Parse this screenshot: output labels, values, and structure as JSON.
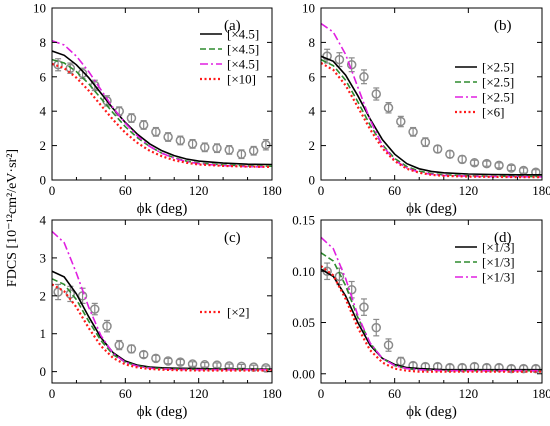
{
  "figure": {
    "ylabel_shared": "FDCS  [10⁻¹²cm²/eV·sr²]",
    "xlabel": "ϕk (deg)"
  },
  "colors": {
    "black": "#000000",
    "green": "#2e8b2e",
    "magenta": "#e020e0",
    "red": "#ff1a1a",
    "data_gray": "#8a8a8a"
  },
  "chart_data": [
    {
      "panel": "(a)",
      "type": "line",
      "xlim": [
        0,
        180
      ],
      "ylim": [
        0,
        10
      ],
      "xticks": [
        0,
        60,
        120,
        180
      ],
      "yticks": [
        0,
        2,
        4,
        6,
        8,
        10
      ],
      "xlabel": "ϕk (deg)",
      "ylabel": "",
      "legend_position": "upper-right",
      "series": [
        {
          "label": "[×4.5]",
          "color": "#000000",
          "style": "solid",
          "x": [
            0,
            10,
            20,
            30,
            40,
            50,
            60,
            70,
            80,
            90,
            100,
            110,
            120,
            140,
            160,
            180
          ],
          "y": [
            7.5,
            7.25,
            6.7,
            5.95,
            5.05,
            4.15,
            3.35,
            2.65,
            2.1,
            1.7,
            1.42,
            1.22,
            1.1,
            0.98,
            0.92,
            0.9
          ]
        },
        {
          "label": "[×4.5]",
          "color": "#2e8b2e",
          "style": "dashed",
          "x": [
            0,
            10,
            20,
            30,
            40,
            50,
            60,
            70,
            80,
            90,
            100,
            110,
            120,
            140,
            160,
            180
          ],
          "y": [
            7.0,
            6.8,
            6.3,
            5.6,
            4.75,
            3.9,
            3.1,
            2.45,
            1.95,
            1.55,
            1.3,
            1.1,
            0.98,
            0.88,
            0.82,
            0.8
          ]
        },
        {
          "label": "[×4.5]",
          "color": "#e020e0",
          "style": "dashdot",
          "x": [
            0,
            10,
            20,
            30,
            40,
            50,
            60,
            70,
            80,
            90,
            100,
            110,
            120,
            140,
            160,
            180
          ],
          "y": [
            8.1,
            7.85,
            7.2,
            6.3,
            5.25,
            4.2,
            3.3,
            2.55,
            1.95,
            1.55,
            1.27,
            1.07,
            0.95,
            0.84,
            0.78,
            0.75
          ]
        },
        {
          "label": "[×10]",
          "color": "#ff1a1a",
          "style": "dotted",
          "x": [
            0,
            10,
            20,
            30,
            40,
            50,
            60,
            70,
            80,
            90,
            100,
            110,
            120,
            140,
            160,
            180
          ],
          "y": [
            6.75,
            6.5,
            5.95,
            5.2,
            4.35,
            3.5,
            2.75,
            2.15,
            1.7,
            1.38,
            1.15,
            1.0,
            0.9,
            0.82,
            0.78,
            0.76
          ]
        }
      ],
      "experiment": {
        "x": [
          5,
          15,
          25,
          35,
          45,
          55,
          65,
          75,
          85,
          95,
          105,
          115,
          125,
          135,
          145,
          155,
          165,
          175
        ],
        "y": [
          6.7,
          6.5,
          6.2,
          5.5,
          4.6,
          4.0,
          3.6,
          3.2,
          2.8,
          2.5,
          2.3,
          2.1,
          1.9,
          1.85,
          1.75,
          1.5,
          1.7,
          2.05
        ],
        "err": [
          0.35,
          0.3,
          0.3,
          0.3,
          0.3,
          0.25,
          0.25,
          0.25,
          0.25,
          0.25,
          0.25,
          0.25,
          0.25,
          0.25,
          0.25,
          0.25,
          0.25,
          0.3
        ]
      }
    },
    {
      "panel": "(b)",
      "type": "line",
      "xlim": [
        0,
        180
      ],
      "ylim": [
        0,
        10
      ],
      "xticks": [
        0,
        60,
        120,
        180
      ],
      "yticks": [
        0,
        2,
        4,
        6,
        8,
        10
      ],
      "xlabel": "ϕk (deg)",
      "ylabel": "",
      "legend_position": "center-right",
      "series": [
        {
          "label": "[×2.5]",
          "color": "#000000",
          "style": "solid",
          "x": [
            0,
            10,
            20,
            30,
            40,
            50,
            60,
            70,
            80,
            90,
            100,
            120,
            140,
            160,
            180
          ],
          "y": [
            7.2,
            6.9,
            6.1,
            4.9,
            3.55,
            2.35,
            1.5,
            0.95,
            0.65,
            0.5,
            0.42,
            0.35,
            0.32,
            0.3,
            0.3
          ]
        },
        {
          "label": "[×2.5]",
          "color": "#2e8b2e",
          "style": "dashed",
          "x": [
            0,
            10,
            20,
            30,
            40,
            50,
            60,
            70,
            80,
            90,
            100,
            120,
            140,
            160,
            180
          ],
          "y": [
            7.0,
            6.65,
            5.8,
            4.55,
            3.2,
            2.05,
            1.25,
            0.78,
            0.52,
            0.38,
            0.3,
            0.25,
            0.22,
            0.21,
            0.2
          ]
        },
        {
          "label": "[×2.5]",
          "color": "#e020e0",
          "style": "dashdot",
          "x": [
            0,
            10,
            20,
            30,
            40,
            50,
            60,
            70,
            80,
            90,
            100,
            120,
            140,
            160,
            180
          ],
          "y": [
            9.1,
            8.6,
            7.3,
            5.4,
            3.5,
            2.0,
            1.15,
            0.7,
            0.45,
            0.33,
            0.27,
            0.22,
            0.2,
            0.19,
            0.18
          ]
        },
        {
          "label": "[×6]",
          "color": "#ff1a1a",
          "style": "dotted",
          "x": [
            0,
            10,
            20,
            30,
            40,
            50,
            60,
            70,
            80,
            90,
            100,
            120,
            140,
            160,
            180
          ],
          "y": [
            6.8,
            6.4,
            5.5,
            4.25,
            2.95,
            1.85,
            1.1,
            0.65,
            0.42,
            0.3,
            0.24,
            0.2,
            0.18,
            0.17,
            0.16
          ]
        }
      ],
      "experiment": {
        "x": [
          5,
          15,
          25,
          35,
          45,
          55,
          65,
          75,
          85,
          95,
          105,
          115,
          125,
          135,
          145,
          155,
          165,
          175
        ],
        "y": [
          7.2,
          7.0,
          6.7,
          6.0,
          5.0,
          4.2,
          3.4,
          2.8,
          2.2,
          1.8,
          1.5,
          1.2,
          1.0,
          0.95,
          0.85,
          0.7,
          0.55,
          0.45
        ],
        "err": [
          0.4,
          0.4,
          0.4,
          0.4,
          0.35,
          0.3,
          0.3,
          0.25,
          0.25,
          0.2,
          0.2,
          0.2,
          0.15,
          0.15,
          0.15,
          0.15,
          0.15,
          0.15
        ]
      }
    },
    {
      "panel": "(c)",
      "type": "line",
      "xlim": [
        0,
        180
      ],
      "ylim": [
        -0.3,
        4
      ],
      "xticks": [
        0,
        60,
        120,
        180
      ],
      "yticks": [
        0,
        1,
        2,
        3,
        4
      ],
      "xlabel": "ϕk (deg)",
      "ylabel": "",
      "legend_position": "center-right",
      "series": [
        {
          "label": "",
          "color": "#000000",
          "style": "solid",
          "x": [
            0,
            10,
            20,
            30,
            40,
            50,
            60,
            70,
            80,
            90,
            100,
            120,
            140,
            160,
            180
          ],
          "y": [
            2.65,
            2.5,
            2.05,
            1.45,
            0.9,
            0.5,
            0.28,
            0.17,
            0.12,
            0.1,
            0.09,
            0.08,
            0.07,
            0.07,
            0.07
          ]
        },
        {
          "label": "",
          "color": "#2e8b2e",
          "style": "dashed",
          "x": [
            0,
            10,
            20,
            30,
            40,
            50,
            60,
            70,
            80,
            90,
            100,
            120,
            140,
            160,
            180
          ],
          "y": [
            2.45,
            2.3,
            1.9,
            1.33,
            0.82,
            0.45,
            0.25,
            0.15,
            0.1,
            0.08,
            0.07,
            0.06,
            0.06,
            0.06,
            0.06
          ]
        },
        {
          "label": "",
          "color": "#e020e0",
          "style": "dashdot",
          "x": [
            0,
            10,
            20,
            30,
            40,
            50,
            60,
            70,
            80,
            90,
            100,
            120,
            140,
            160,
            180
          ],
          "y": [
            3.7,
            3.4,
            2.6,
            1.7,
            0.95,
            0.48,
            0.25,
            0.14,
            0.09,
            0.07,
            0.06,
            0.05,
            0.05,
            0.05,
            0.05
          ]
        },
        {
          "label": "[×2]",
          "color": "#ff1a1a",
          "style": "dotted",
          "x": [
            0,
            10,
            20,
            30,
            40,
            50,
            60,
            70,
            80,
            90,
            100,
            120,
            140,
            160,
            180
          ],
          "y": [
            2.3,
            2.12,
            1.7,
            1.15,
            0.68,
            0.36,
            0.19,
            0.11,
            0.07,
            0.05,
            0.04,
            0.03,
            0.03,
            0.03,
            0.03
          ]
        }
      ],
      "experiment": {
        "x": [
          5,
          15,
          25,
          35,
          45,
          55,
          65,
          75,
          85,
          95,
          105,
          115,
          125,
          135,
          145,
          155,
          165,
          175
        ],
        "y": [
          2.1,
          2.05,
          2.0,
          1.65,
          1.2,
          0.7,
          0.6,
          0.45,
          0.35,
          0.28,
          0.25,
          0.2,
          0.18,
          0.17,
          0.15,
          0.14,
          0.12,
          0.1
        ],
        "err": [
          0.2,
          0.2,
          0.2,
          0.15,
          0.15,
          0.12,
          0.1,
          0.08,
          0.08,
          0.07,
          0.07,
          0.06,
          0.06,
          0.06,
          0.05,
          0.05,
          0.05,
          0.05
        ]
      }
    },
    {
      "panel": "(d)",
      "type": "line",
      "xlim": [
        0,
        180
      ],
      "ylim": [
        -0.009,
        0.15
      ],
      "xticks": [
        0,
        60,
        120,
        180
      ],
      "yticks": [
        0.0,
        0.05,
        0.1,
        0.15
      ],
      "ytick_labels": [
        "0.00",
        "0.05",
        "0.10",
        "0.15"
      ],
      "xlabel": "ϕk (deg)",
      "ylabel": "",
      "legend_position": "upper-right",
      "series": [
        {
          "label": "[×1/3]",
          "color": "#000000",
          "style": "solid",
          "x": [
            0,
            10,
            20,
            30,
            40,
            50,
            60,
            70,
            80,
            100,
            120,
            140,
            160,
            180
          ],
          "y": [
            0.102,
            0.095,
            0.076,
            0.05,
            0.028,
            0.015,
            0.009,
            0.006,
            0.005,
            0.004,
            0.004,
            0.004,
            0.004,
            0.004
          ]
        },
        {
          "label": "[×1/3]",
          "color": "#2e8b2e",
          "style": "dashed",
          "x": [
            0,
            10,
            20,
            30,
            40,
            50,
            60,
            70,
            80,
            100,
            120,
            140,
            160,
            180
          ],
          "y": [
            0.118,
            0.11,
            0.086,
            0.055,
            0.03,
            0.015,
            0.008,
            0.005,
            0.004,
            0.003,
            0.003,
            0.003,
            0.003,
            0.003
          ]
        },
        {
          "label": "[×1/3]",
          "color": "#e020e0",
          "style": "dashdot",
          "x": [
            0,
            10,
            20,
            30,
            40,
            50,
            60,
            70,
            80,
            100,
            120,
            140,
            160,
            180
          ],
          "y": [
            0.133,
            0.122,
            0.093,
            0.057,
            0.03,
            0.015,
            0.008,
            0.005,
            0.004,
            0.003,
            0.003,
            0.003,
            0.003,
            0.003
          ]
        },
        {
          "label": "",
          "color": "#ff1a1a",
          "style": "dotted",
          "x": [
            0,
            10,
            20,
            30,
            40,
            50,
            60,
            70,
            80,
            100,
            120,
            140,
            160,
            180
          ],
          "y": [
            0.105,
            0.096,
            0.073,
            0.045,
            0.023,
            0.011,
            0.005,
            0.003,
            0.002,
            0.002,
            0.002,
            0.002,
            0.002,
            0.002
          ]
        }
      ],
      "experiment": {
        "x": [
          5,
          15,
          25,
          35,
          45,
          55,
          65,
          75,
          85,
          95,
          105,
          115,
          125,
          135,
          145,
          155,
          165,
          175
        ],
        "y": [
          0.1,
          0.095,
          0.082,
          0.065,
          0.045,
          0.028,
          0.012,
          0.008,
          0.007,
          0.007,
          0.006,
          0.006,
          0.007,
          0.006,
          0.006,
          0.005,
          0.005,
          0.005
        ],
        "err": [
          0.008,
          0.008,
          0.008,
          0.008,
          0.008,
          0.006,
          0.004,
          0.003,
          0.003,
          0.003,
          0.003,
          0.003,
          0.003,
          0.003,
          0.003,
          0.003,
          0.003,
          0.003
        ]
      }
    }
  ]
}
